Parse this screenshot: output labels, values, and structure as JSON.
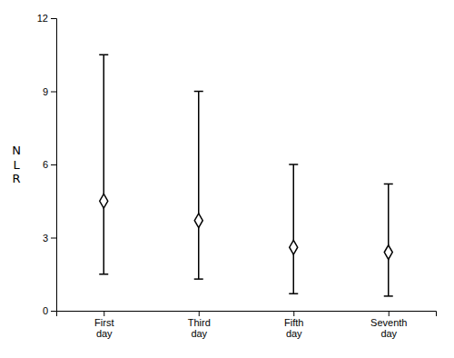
{
  "chart_data": {
    "type": "errorbar",
    "categories": [
      "First\nday",
      "Third\nday",
      "Fifth\nday",
      "Seventh\nday"
    ],
    "values": [
      4.5,
      3.7,
      2.6,
      2.4
    ],
    "lower": [
      1.5,
      1.3,
      0.7,
      0.6
    ],
    "upper": [
      10.5,
      9.0,
      6.0,
      5.2
    ],
    "y_label": "N\nL\nR",
    "ylim": [
      0,
      12
    ],
    "yticks": [
      0,
      3,
      6,
      9,
      12
    ],
    "color": "#000000",
    "marker": "diamond",
    "grid": false
  }
}
